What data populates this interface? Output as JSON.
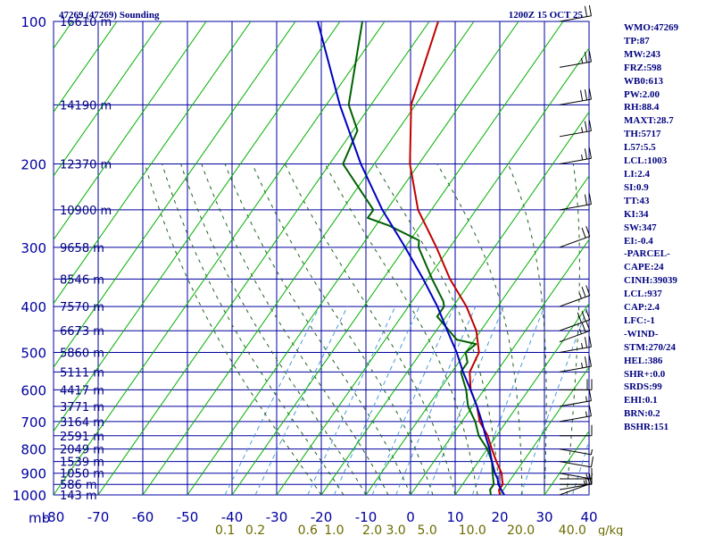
{
  "header": {
    "title": "47269 (47269) Sounding",
    "time": "1200Z 15 OCT 25"
  },
  "axes": {
    "y_label": "mb",
    "pressure_ticks": [
      100,
      200,
      300,
      400,
      500,
      600,
      700,
      800,
      900,
      1000
    ],
    "temp_ticks": [
      -80,
      -70,
      -60,
      -50,
      -40,
      -30,
      -20,
      -10,
      0,
      10,
      20,
      30,
      40
    ],
    "mixing_ratio_labels": [
      "0.1",
      "0.2",
      "0.6",
      "1.0",
      "2.0",
      "3.0",
      "5.0",
      "10.0",
      "20.0",
      "40.0"
    ],
    "mixing_unit": "g/kg",
    "height_labels": [
      {
        "p": 100,
        "label": "16610 m"
      },
      {
        "p": 150,
        "label": "14190 m"
      },
      {
        "p": 200,
        "label": "12370 m"
      },
      {
        "p": 250,
        "label": "10900 m"
      },
      {
        "p": 300,
        "label": "9658 m"
      },
      {
        "p": 350,
        "label": "8546 m"
      },
      {
        "p": 400,
        "label": "7570 m"
      },
      {
        "p": 450,
        "label": "6673 m"
      },
      {
        "p": 500,
        "label": "5860 m"
      },
      {
        "p": 550,
        "label": "5111 m"
      },
      {
        "p": 600,
        "label": "4417 m"
      },
      {
        "p": 650,
        "label": "3771 m"
      },
      {
        "p": 700,
        "label": "3164 m"
      },
      {
        "p": 750,
        "label": "2591 m"
      },
      {
        "p": 800,
        "label": "2049 m"
      },
      {
        "p": 850,
        "label": "1539 m"
      },
      {
        "p": 900,
        "label": "1050 m"
      },
      {
        "p": 950,
        "label": "586 m"
      },
      {
        "p": 1000,
        "label": "143 m"
      }
    ]
  },
  "indices": [
    "WMO:47269",
    "TP:87",
    "MW:243",
    "FRZ:598",
    "WB0:613",
    "PW:2.00",
    "RH:88.4",
    "MAXT:28.7",
    "TH:5717",
    "L57:5.5",
    "LCL:1003",
    "LI:2.4",
    "SI:0.9",
    "TT:43",
    "KI:34",
    "SW:347",
    "EI:-0.4",
    "-PARCEL-",
    "CAPE:24",
    "CINH:39039",
    "LCL:937",
    "CAP:2.4",
    "LFC:-1",
    "-WIND-",
    "STM:270/24",
    "HEL:386",
    "SHR+:0.0",
    "SRDS:99",
    "EHI:0.1",
    "BRN:0.2",
    "BSHR:151"
  ],
  "colors": {
    "grid": "#0000a0",
    "isotherm": "#00b000",
    "mixing": "#4a9ad8",
    "moist": "#206020",
    "temperature": "#c00000",
    "dewpoint": "#006000",
    "parcel": "#0000c0",
    "text": "#000080",
    "mix_label": "#6b6b00"
  },
  "chart_data": {
    "type": "line",
    "title": "47269 (47269) Sounding",
    "xlabel": "",
    "ylabel": "mb",
    "ylim": [
      1000,
      100
    ],
    "y_scale": "log",
    "xlim": [
      -80,
      40
    ],
    "grid": true,
    "series": [
      {
        "key": "temperature",
        "points": [
          [
            1000,
            20
          ],
          [
            975,
            19
          ],
          [
            950,
            19
          ],
          [
            925,
            18
          ],
          [
            900,
            17
          ],
          [
            850,
            14
          ],
          [
            800,
            11
          ],
          [
            750,
            8
          ],
          [
            700,
            4
          ],
          [
            650,
            1
          ],
          [
            600,
            -3
          ],
          [
            550,
            -6
          ],
          [
            500,
            -7
          ],
          [
            450,
            -11
          ],
          [
            400,
            -17
          ],
          [
            350,
            -25
          ],
          [
            300,
            -33
          ],
          [
            250,
            -43
          ],
          [
            200,
            -52
          ],
          [
            150,
            -61
          ],
          [
            100,
            -68
          ]
        ]
      },
      {
        "key": "dewpoint",
        "points": [
          [
            1000,
            18
          ],
          [
            975,
            17
          ],
          [
            950,
            17
          ],
          [
            925,
            16
          ],
          [
            900,
            15
          ],
          [
            850,
            13
          ],
          [
            800,
            10
          ],
          [
            750,
            6
          ],
          [
            700,
            3
          ],
          [
            650,
            -1
          ],
          [
            600,
            -4
          ],
          [
            550,
            -8
          ],
          [
            525,
            -8
          ],
          [
            500,
            -10
          ],
          [
            480,
            -9
          ],
          [
            470,
            -14
          ],
          [
            420,
            -22
          ],
          [
            400,
            -22
          ],
          [
            390,
            -23
          ],
          [
            350,
            -29
          ],
          [
            300,
            -37
          ],
          [
            290,
            -38
          ],
          [
            270,
            -47
          ],
          [
            260,
            -53
          ],
          [
            250,
            -53
          ],
          [
            200,
            -67
          ],
          [
            170,
            -69
          ],
          [
            150,
            -75
          ],
          [
            100,
            -85
          ]
        ]
      },
      {
        "key": "parcel",
        "points": [
          [
            1000,
            21
          ],
          [
            975,
            19.5
          ],
          [
            950,
            18
          ],
          [
            925,
            17
          ],
          [
            900,
            15.5
          ],
          [
            850,
            13
          ],
          [
            800,
            10.5
          ],
          [
            750,
            7.5
          ],
          [
            700,
            4.5
          ],
          [
            650,
            1
          ],
          [
            600,
            -3
          ],
          [
            550,
            -7.5
          ],
          [
            500,
            -12
          ],
          [
            450,
            -17.5
          ],
          [
            400,
            -23.5
          ],
          [
            350,
            -31
          ],
          [
            300,
            -40
          ],
          [
            250,
            -51
          ],
          [
            200,
            -63
          ],
          [
            150,
            -77
          ],
          [
            100,
            -95
          ]
        ]
      }
    ],
    "wind_barbs": [
      {
        "p": 1000,
        "dir": 70,
        "spd": 15
      },
      {
        "p": 975,
        "dir": 80,
        "spd": 15
      },
      {
        "p": 950,
        "dir": 90,
        "spd": 10
      },
      {
        "p": 925,
        "dir": 90,
        "spd": 10
      },
      {
        "p": 900,
        "dir": 100,
        "spd": 5
      },
      {
        "p": 850,
        "dir": 100,
        "spd": 10
      },
      {
        "p": 800,
        "dir": 100,
        "spd": 5
      },
      {
        "p": 750,
        "dir": 90,
        "spd": 10
      },
      {
        "p": 700,
        "dir": 80,
        "spd": 15
      },
      {
        "p": 650,
        "dir": 80,
        "spd": 15
      },
      {
        "p": 600,
        "dir": 90,
        "spd": 20
      },
      {
        "p": 550,
        "dir": 80,
        "spd": 25
      },
      {
        "p": 500,
        "dir": 80,
        "spd": 25
      },
      {
        "p": 475,
        "dir": 70,
        "spd": 25
      },
      {
        "p": 450,
        "dir": 70,
        "spd": 30
      },
      {
        "p": 400,
        "dir": 70,
        "spd": 25
      },
      {
        "p": 300,
        "dir": 70,
        "spd": 20
      },
      {
        "p": 250,
        "dir": 80,
        "spd": 20
      },
      {
        "p": 200,
        "dir": 80,
        "spd": 25
      },
      {
        "p": 175,
        "dir": 80,
        "spd": 25
      },
      {
        "p": 150,
        "dir": 80,
        "spd": 30
      },
      {
        "p": 125,
        "dir": 80,
        "spd": 25
      },
      {
        "p": 100,
        "dir": 80,
        "spd": 20
      }
    ]
  }
}
